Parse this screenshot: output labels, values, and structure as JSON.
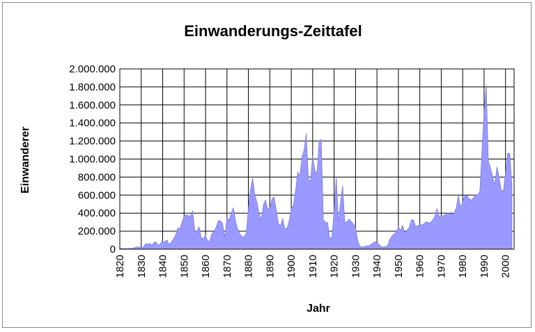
{
  "chart_data": {
    "type": "area",
    "title": "Einwanderungs-Zeittafel",
    "xlabel": "Jahr",
    "ylabel": "Einwanderer",
    "xlim": [
      1820,
      2004
    ],
    "ylim": [
      0,
      2000000
    ],
    "grid": true,
    "legend": "none",
    "y_ticks": [
      "0",
      "200.000",
      "400.000",
      "600.000",
      "800.000",
      "1.000.000",
      "1.200.000",
      "1.400.000",
      "1.600.000",
      "1.800.000",
      "2.000.000"
    ],
    "y_tick_values": [
      0,
      200000,
      400000,
      600000,
      800000,
      1000000,
      1200000,
      1400000,
      1600000,
      1800000,
      2000000
    ],
    "x_ticks": [
      "1820",
      "1830",
      "1840",
      "1850",
      "1860",
      "1870",
      "1880",
      "1890",
      "1900",
      "1910",
      "1920",
      "1930",
      "1940",
      "1950",
      "1960",
      "1970",
      "1980",
      "1990",
      "2000"
    ],
    "x_tick_values": [
      1820,
      1830,
      1840,
      1850,
      1860,
      1870,
      1880,
      1890,
      1900,
      1910,
      1920,
      1930,
      1940,
      1950,
      1960,
      1970,
      1980,
      1990,
      2000
    ],
    "series": [
      {
        "color": "#9999ff",
        "points": [
          [
            1820,
            8000
          ],
          [
            1822,
            7000
          ],
          [
            1824,
            8000
          ],
          [
            1826,
            11000
          ],
          [
            1828,
            27000
          ],
          [
            1829,
            22000
          ],
          [
            1830,
            24000
          ],
          [
            1831,
            23000
          ],
          [
            1832,
            60000
          ],
          [
            1833,
            58000
          ],
          [
            1834,
            65000
          ],
          [
            1835,
            45000
          ],
          [
            1836,
            76000
          ],
          [
            1837,
            79000
          ],
          [
            1838,
            38000
          ],
          [
            1839,
            68000
          ],
          [
            1840,
            84000
          ],
          [
            1841,
            80000
          ],
          [
            1842,
            104000
          ],
          [
            1843,
            52000
          ],
          [
            1844,
            78000
          ],
          [
            1845,
            114000
          ],
          [
            1846,
            154000
          ],
          [
            1847,
            235000
          ],
          [
            1848,
            226000
          ],
          [
            1849,
            297000
          ],
          [
            1850,
            370000
          ],
          [
            1851,
            380000
          ],
          [
            1852,
            372000
          ],
          [
            1853,
            368000
          ],
          [
            1854,
            428000
          ],
          [
            1855,
            200000
          ],
          [
            1856,
            200000
          ],
          [
            1857,
            251000
          ],
          [
            1858,
            123000
          ],
          [
            1859,
            121000
          ],
          [
            1860,
            153000
          ],
          [
            1861,
            92000
          ],
          [
            1862,
            92000
          ],
          [
            1863,
            176000
          ],
          [
            1864,
            193000
          ],
          [
            1865,
            249000
          ],
          [
            1866,
            318000
          ],
          [
            1867,
            315000
          ],
          [
            1868,
            282000
          ],
          [
            1869,
            138000
          ],
          [
            1870,
            352000
          ],
          [
            1871,
            321000
          ],
          [
            1872,
            405000
          ],
          [
            1873,
            460000
          ],
          [
            1874,
            313000
          ],
          [
            1875,
            227000
          ],
          [
            1876,
            170000
          ],
          [
            1877,
            142000
          ],
          [
            1878,
            138000
          ],
          [
            1879,
            178000
          ],
          [
            1880,
            457000
          ],
          [
            1881,
            669000
          ],
          [
            1882,
            789000
          ],
          [
            1883,
            603000
          ],
          [
            1884,
            519000
          ],
          [
            1885,
            395000
          ],
          [
            1886,
            334000
          ],
          [
            1887,
            490000
          ],
          [
            1888,
            547000
          ],
          [
            1889,
            444000
          ],
          [
            1890,
            455000
          ],
          [
            1891,
            560000
          ],
          [
            1892,
            580000
          ],
          [
            1893,
            440000
          ],
          [
            1894,
            286000
          ],
          [
            1895,
            259000
          ],
          [
            1896,
            343000
          ],
          [
            1897,
            231000
          ],
          [
            1898,
            229000
          ],
          [
            1899,
            312000
          ],
          [
            1900,
            449000
          ],
          [
            1901,
            488000
          ],
          [
            1902,
            649000
          ],
          [
            1903,
            857000
          ],
          [
            1904,
            813000
          ],
          [
            1905,
            1026000
          ],
          [
            1906,
            1101000
          ],
          [
            1907,
            1285000
          ],
          [
            1908,
            783000
          ],
          [
            1909,
            752000
          ],
          [
            1910,
            1042000
          ],
          [
            1911,
            878000
          ],
          [
            1912,
            838000
          ],
          [
            1913,
            1198000
          ],
          [
            1914,
            1218000
          ],
          [
            1915,
            327000
          ],
          [
            1916,
            299000
          ],
          [
            1917,
            295000
          ],
          [
            1918,
            111000
          ],
          [
            1919,
            141000
          ],
          [
            1920,
            430000
          ],
          [
            1921,
            805000
          ],
          [
            1922,
            310000
          ],
          [
            1923,
            523000
          ],
          [
            1924,
            707000
          ],
          [
            1925,
            294000
          ],
          [
            1926,
            304000
          ],
          [
            1927,
            335000
          ],
          [
            1928,
            307000
          ],
          [
            1929,
            280000
          ],
          [
            1930,
            242000
          ],
          [
            1931,
            97000
          ],
          [
            1932,
            36000
          ],
          [
            1933,
            23000
          ],
          [
            1934,
            30000
          ],
          [
            1935,
            35000
          ],
          [
            1936,
            36000
          ],
          [
            1937,
            50000
          ],
          [
            1938,
            68000
          ],
          [
            1939,
            83000
          ],
          [
            1940,
            71000
          ],
          [
            1941,
            52000
          ],
          [
            1942,
            29000
          ],
          [
            1943,
            24000
          ],
          [
            1944,
            29000
          ],
          [
            1945,
            38000
          ],
          [
            1946,
            109000
          ],
          [
            1947,
            147000
          ],
          [
            1948,
            171000
          ],
          [
            1949,
            188000
          ],
          [
            1950,
            249000
          ],
          [
            1951,
            206000
          ],
          [
            1952,
            266000
          ],
          [
            1953,
            170000
          ],
          [
            1954,
            208000
          ],
          [
            1955,
            238000
          ],
          [
            1956,
            322000
          ],
          [
            1957,
            327000
          ],
          [
            1958,
            253000
          ],
          [
            1959,
            261000
          ],
          [
            1960,
            265000
          ],
          [
            1961,
            271000
          ],
          [
            1962,
            284000
          ],
          [
            1963,
            306000
          ],
          [
            1964,
            292000
          ],
          [
            1965,
            297000
          ],
          [
            1966,
            323000
          ],
          [
            1967,
            362000
          ],
          [
            1968,
            454000
          ],
          [
            1969,
            359000
          ],
          [
            1970,
            373000
          ],
          [
            1971,
            370000
          ],
          [
            1972,
            385000
          ],
          [
            1973,
            400000
          ],
          [
            1974,
            395000
          ],
          [
            1975,
            386000
          ],
          [
            1976,
            399000
          ],
          [
            1977,
            462000
          ],
          [
            1978,
            601000
          ],
          [
            1979,
            460000
          ],
          [
            1980,
            531000
          ],
          [
            1981,
            597000
          ],
          [
            1982,
            594000
          ],
          [
            1983,
            560000
          ],
          [
            1984,
            544000
          ],
          [
            1985,
            570000
          ],
          [
            1986,
            602000
          ],
          [
            1987,
            601000
          ],
          [
            1988,
            643000
          ],
          [
            1989,
            1091000
          ],
          [
            1990,
            1536000
          ],
          [
            1991,
            1827000
          ],
          [
            1992,
            974000
          ],
          [
            1993,
            904000
          ],
          [
            1994,
            804000
          ],
          [
            1995,
            720000
          ],
          [
            1996,
            916000
          ],
          [
            1997,
            798000
          ],
          [
            1998,
            654000
          ],
          [
            1999,
            646000
          ],
          [
            2000,
            850000
          ],
          [
            2001,
            1064000
          ],
          [
            2002,
            1064000
          ],
          [
            2003,
            706000
          ]
        ]
      }
    ]
  }
}
